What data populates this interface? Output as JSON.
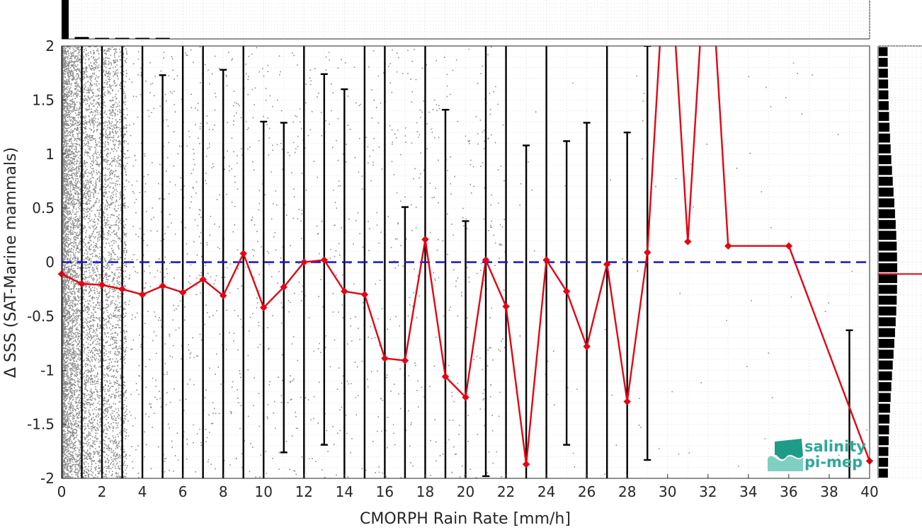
{
  "chart_data": {
    "type": "line",
    "xlabel": "CMORPH Rain Rate [mm/h]",
    "ylabel": "Δ SSS (SAT-Marine mammals)",
    "xlim": [
      0,
      40
    ],
    "ylim": [
      -2,
      2
    ],
    "x_ticks": [
      "0",
      "2",
      "4",
      "6",
      "8",
      "10",
      "12",
      "14",
      "16",
      "18",
      "20",
      "22",
      "24",
      "26",
      "28",
      "30",
      "32",
      "34",
      "36",
      "38",
      "40"
    ],
    "y_ticks": [
      "-2",
      "-1.5",
      "-1",
      "-0.5",
      "0",
      "0.5",
      "1",
      "1.5",
      "2"
    ],
    "grid": true,
    "reference_line": {
      "y": 0,
      "style": "dashed",
      "color": "#1414d2"
    },
    "series": [
      {
        "color": "#e30613",
        "marker": "diamond",
        "x": [
          0,
          1,
          2,
          3,
          4,
          5,
          6,
          7,
          8,
          9,
          10,
          11,
          12,
          13,
          14,
          15,
          16,
          17,
          18,
          19,
          20,
          21,
          22,
          23,
          24,
          25,
          26,
          27,
          28,
          29,
          30,
          31,
          32,
          33,
          36,
          40
        ],
        "values": [
          -0.11,
          -0.2,
          -0.21,
          -0.25,
          -0.3,
          -0.22,
          -0.28,
          -0.16,
          -0.31,
          0.08,
          -0.42,
          -0.23,
          0.0,
          0.02,
          -0.27,
          -0.3,
          -0.89,
          -0.91,
          0.21,
          -1.06,
          -1.25,
          0.02,
          -0.41,
          -1.87,
          0.02,
          -0.27,
          -0.78,
          -0.02,
          -1.29,
          0.09,
          3.2,
          0.19,
          3.2,
          0.15,
          0.15,
          -1.84
        ]
      }
    ],
    "error_bars": [
      {
        "x": 0,
        "low": -2.5,
        "high": 2.5
      },
      {
        "x": 1,
        "low": -2.5,
        "high": 2.5
      },
      {
        "x": 2,
        "low": -2.5,
        "high": 2.5
      },
      {
        "x": 3,
        "low": -2.5,
        "high": 2.5
      },
      {
        "x": 4,
        "low": -2.5,
        "high": 2.5
      },
      {
        "x": 5,
        "low": -2.5,
        "high": 1.73
      },
      {
        "x": 6,
        "low": -2.5,
        "high": 2.5
      },
      {
        "x": 7,
        "low": -2.5,
        "high": 2.5
      },
      {
        "x": 8,
        "low": -2.5,
        "high": 1.78
      },
      {
        "x": 9,
        "low": -2.5,
        "high": 2.5
      },
      {
        "x": 10,
        "low": -2.5,
        "high": 1.3
      },
      {
        "x": 11,
        "low": -1.76,
        "high": 1.29
      },
      {
        "x": 12,
        "low": -2.5,
        "high": 2.5
      },
      {
        "x": 13,
        "low": -1.69,
        "high": 1.74
      },
      {
        "x": 14,
        "low": -2.5,
        "high": 1.6
      },
      {
        "x": 15,
        "low": -2.5,
        "high": 2.5
      },
      {
        "x": 16,
        "low": -2.5,
        "high": 2.5
      },
      {
        "x": 17,
        "low": -2.5,
        "high": 0.51
      },
      {
        "x": 18,
        "low": -2.5,
        "high": 2.5
      },
      {
        "x": 19,
        "low": -2.5,
        "high": 1.41
      },
      {
        "x": 20,
        "low": -2.5,
        "high": 0.38
      },
      {
        "x": 21,
        "low": -1.98,
        "high": 2.5
      },
      {
        "x": 22,
        "low": -2.5,
        "high": 2.5
      },
      {
        "x": 23,
        "low": -2.5,
        "high": 1.08
      },
      {
        "x": 24,
        "low": -2.5,
        "high": 2.5
      },
      {
        "x": 25,
        "low": -1.69,
        "high": 1.12
      },
      {
        "x": 26,
        "low": -2.5,
        "high": 1.29
      },
      {
        "x": 27,
        "low": -2.5,
        "high": 2.5
      },
      {
        "x": 28,
        "low": -2.5,
        "high": 1.2
      },
      {
        "x": 29,
        "low": -1.83,
        "high": 2.0
      },
      {
        "x": 39,
        "low": -2.5,
        "high": -0.63
      }
    ],
    "marginal_histograms": {
      "top": {
        "x": [
          0,
          1,
          2,
          3,
          4,
          5
        ],
        "counts": [
          1.0,
          0.05,
          0.02,
          0.015,
          0.01,
          0.008
        ]
      },
      "right_median_y": -0.11
    }
  },
  "logo": {
    "line1": "salinity",
    "line2": "pi-mep"
  }
}
